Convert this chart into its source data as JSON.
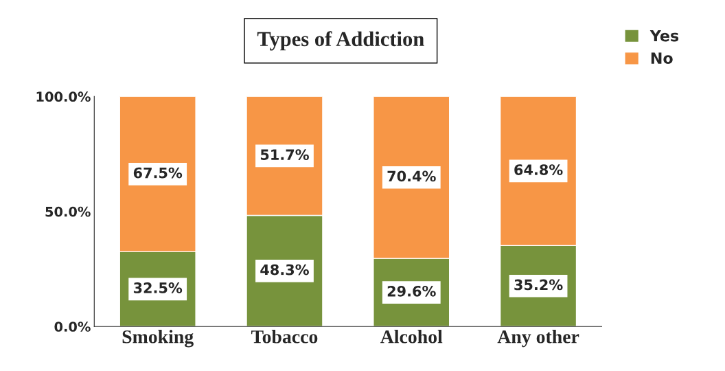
{
  "chart_data": {
    "type": "bar",
    "title": "Types of Addiction",
    "categories": [
      "Smoking",
      "Tobacco",
      "Alcohol",
      "Any other"
    ],
    "stacked": true,
    "series": [
      {
        "name": "Yes",
        "color": "#77933c",
        "values": [
          32.5,
          48.3,
          29.6,
          35.2
        ],
        "value_labels": [
          "32.5%",
          "48.3%",
          "29.6%",
          "35.2%"
        ]
      },
      {
        "name": "No",
        "color": "#f79646",
        "values": [
          67.5,
          51.7,
          70.4,
          64.8
        ],
        "value_labels": [
          "67.5%",
          "51.7%",
          "70.4%",
          "64.8%"
        ]
      }
    ],
    "ylim": [
      0,
      100
    ],
    "yticks": [
      {
        "value": 0,
        "label": "0.0%"
      },
      {
        "value": 50,
        "label": "50.0%"
      },
      {
        "value": 100,
        "label": "100.0%"
      }
    ],
    "grid": false,
    "legend": "top right"
  }
}
